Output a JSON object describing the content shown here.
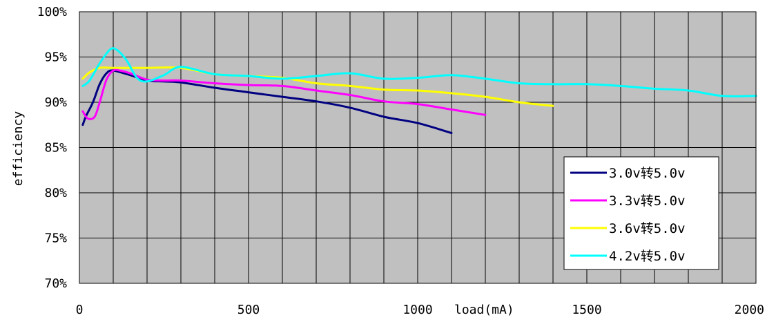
{
  "chart_data": {
    "type": "line",
    "xlabel": "load(mA)",
    "ylabel": "efficiency",
    "xlim": [
      0,
      2000
    ],
    "ylim": [
      70,
      100
    ],
    "x_ticks": [
      0,
      500,
      1000,
      1500,
      2000
    ],
    "x_tick_labels": [
      "0",
      "500",
      "1000",
      "1500",
      "2000"
    ],
    "y_ticks": [
      70,
      75,
      80,
      85,
      90,
      95,
      100
    ],
    "y_tick_labels": [
      "70%",
      "75%",
      "80%",
      "85%",
      "90%",
      "95%",
      "100%"
    ],
    "grid": true,
    "plot_background": "#c0c0c0",
    "legend_position": "bottom-right",
    "series": [
      {
        "name": "3.0v转5.0v",
        "color": "#000080",
        "points": [
          [
            10,
            87.5
          ],
          [
            20,
            88.5
          ],
          [
            40,
            90
          ],
          [
            60,
            92
          ],
          [
            80,
            93.2
          ],
          [
            100,
            93.5
          ],
          [
            150,
            93
          ],
          [
            200,
            92.4
          ],
          [
            250,
            92.3
          ],
          [
            300,
            92.2
          ],
          [
            400,
            91.6
          ],
          [
            500,
            91.1
          ],
          [
            600,
            90.6
          ],
          [
            700,
            90.1
          ],
          [
            800,
            89.4
          ],
          [
            900,
            88.4
          ],
          [
            1000,
            87.7
          ],
          [
            1100,
            86.6
          ]
        ]
      },
      {
        "name": "3.3v转5.0v",
        "color": "#ff00ff",
        "points": [
          [
            10,
            89
          ],
          [
            25,
            88.2
          ],
          [
            45,
            88.4
          ],
          [
            60,
            90
          ],
          [
            80,
            92.5
          ],
          [
            100,
            93.5
          ],
          [
            120,
            93.5
          ],
          [
            150,
            93.2
          ],
          [
            200,
            92.5
          ],
          [
            250,
            92.4
          ],
          [
            300,
            92.4
          ],
          [
            400,
            92.1
          ],
          [
            500,
            91.9
          ],
          [
            600,
            91.8
          ],
          [
            700,
            91.3
          ],
          [
            800,
            90.8
          ],
          [
            900,
            90.1
          ],
          [
            1000,
            89.8
          ],
          [
            1100,
            89.2
          ],
          [
            1200,
            88.6
          ]
        ]
      },
      {
        "name": "3.6v转5.0v",
        "color": "#ffff00",
        "points": [
          [
            10,
            92.6
          ],
          [
            30,
            93.3
          ],
          [
            60,
            93.8
          ],
          [
            100,
            93.8
          ],
          [
            200,
            93.8
          ],
          [
            300,
            93.8
          ],
          [
            400,
            93.1
          ],
          [
            500,
            92.9
          ],
          [
            600,
            92.7
          ],
          [
            700,
            92.1
          ],
          [
            800,
            91.8
          ],
          [
            900,
            91.4
          ],
          [
            1000,
            91.3
          ],
          [
            1100,
            91
          ],
          [
            1200,
            90.6
          ],
          [
            1300,
            90
          ],
          [
            1400,
            89.6
          ]
        ]
      },
      {
        "name": "4.2v转5.0v",
        "color": "#00ffff",
        "points": [
          [
            10,
            91.8
          ],
          [
            30,
            92.4
          ],
          [
            60,
            94.3
          ],
          [
            90,
            95.8
          ],
          [
            110,
            95.8
          ],
          [
            140,
            94.6
          ],
          [
            170,
            92.7
          ],
          [
            200,
            92.3
          ],
          [
            250,
            93
          ],
          [
            300,
            93.9
          ],
          [
            400,
            93.1
          ],
          [
            500,
            92.9
          ],
          [
            600,
            92.6
          ],
          [
            700,
            92.9
          ],
          [
            800,
            93.2
          ],
          [
            900,
            92.6
          ],
          [
            1000,
            92.7
          ],
          [
            1100,
            93
          ],
          [
            1200,
            92.6
          ],
          [
            1300,
            92.1
          ],
          [
            1400,
            92
          ],
          [
            1500,
            92
          ],
          [
            1600,
            91.8
          ],
          [
            1700,
            91.5
          ],
          [
            1800,
            91.3
          ],
          [
            1900,
            90.7
          ],
          [
            2000,
            90.7
          ]
        ]
      }
    ]
  }
}
